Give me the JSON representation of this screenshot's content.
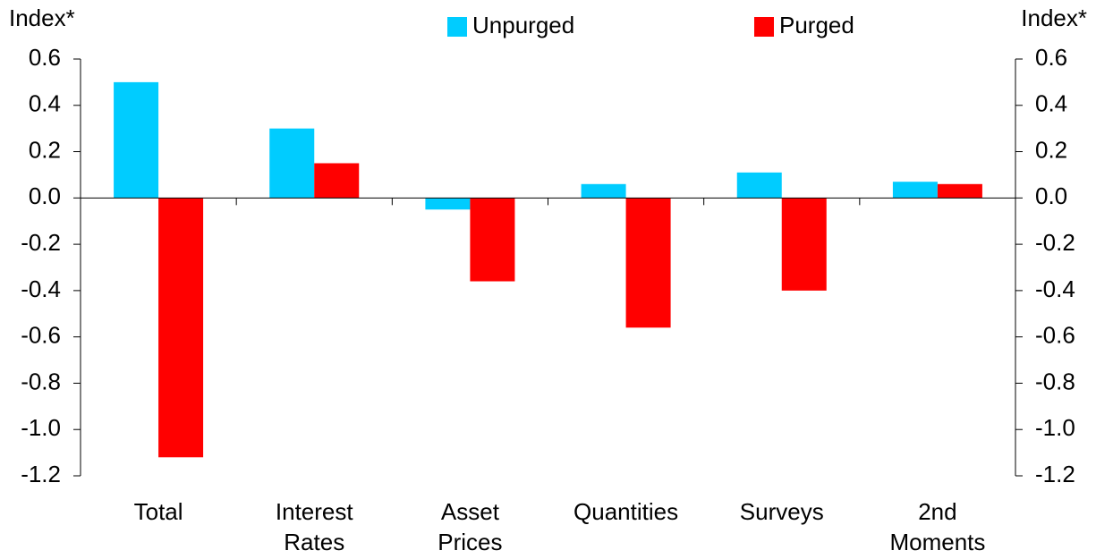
{
  "chart_data": {
    "type": "bar",
    "y_label": "Index*",
    "y2_label": "Index*",
    "categories": [
      [
        "Total"
      ],
      [
        "Interest",
        "Rates"
      ],
      [
        "Asset",
        "Prices"
      ],
      [
        "Quantities"
      ],
      [
        "Surveys"
      ],
      [
        "2nd",
        "Moments"
      ]
    ],
    "series": [
      {
        "name": "Unpurged",
        "color": "#00ccff",
        "values": [
          0.5,
          0.3,
          -0.05,
          0.06,
          0.11,
          0.07
        ]
      },
      {
        "name": "Purged",
        "color": "#ff0000",
        "values": [
          -1.12,
          0.15,
          -0.36,
          -0.56,
          -0.4,
          0.06
        ]
      }
    ],
    "ylim": [
      -1.2,
      0.6
    ],
    "yticks": [
      0.6,
      0.4,
      0.2,
      {
        "value": 0,
        "label": "0.0"
      },
      -0.2,
      -0.4,
      -0.6,
      -0.8,
      {
        "value": -1,
        "label": "-1.0"
      },
      -1.2
    ],
    "y2lim": [
      -1.2,
      0.6
    ],
    "y2ticks": [
      0.6,
      0.4,
      0.2,
      {
        "value": 0,
        "label": "0.0"
      },
      -0.2,
      -0.4,
      -0.6,
      -0.8,
      {
        "value": -1,
        "label": "-1.0"
      },
      -1.2
    ],
    "legend": "top",
    "grid": false
  }
}
